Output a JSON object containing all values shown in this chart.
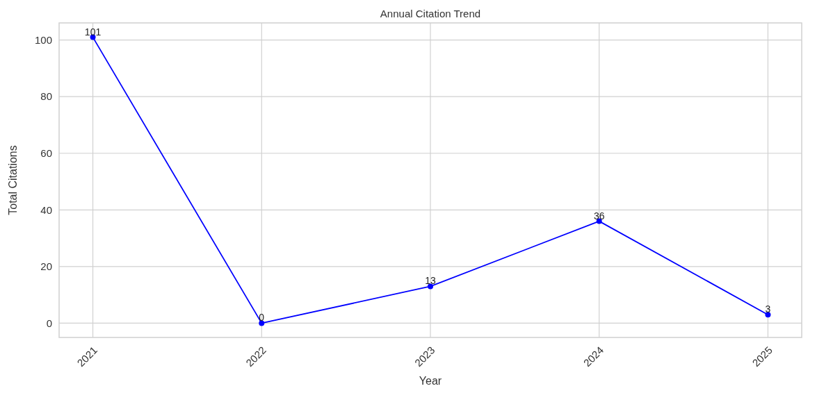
{
  "chart_data": {
    "type": "line",
    "title": "Annual Citation Trend",
    "xlabel": "Year",
    "ylabel": "Total Citations",
    "x": [
      2021,
      2022,
      2023,
      2024,
      2025
    ],
    "series": [
      {
        "color": "#0000ff",
        "values": [
          101,
          0,
          13,
          36,
          3
        ]
      }
    ],
    "xlim": [
      2020.8,
      2025.2
    ],
    "xticks": [
      2021,
      2022,
      2023,
      2024,
      2025
    ],
    "ylim": [
      -5.05,
      106.05
    ],
    "yticks": [
      0,
      20,
      40,
      60,
      80,
      100
    ],
    "grid": true,
    "marker": "circle",
    "data_labels": true
  }
}
